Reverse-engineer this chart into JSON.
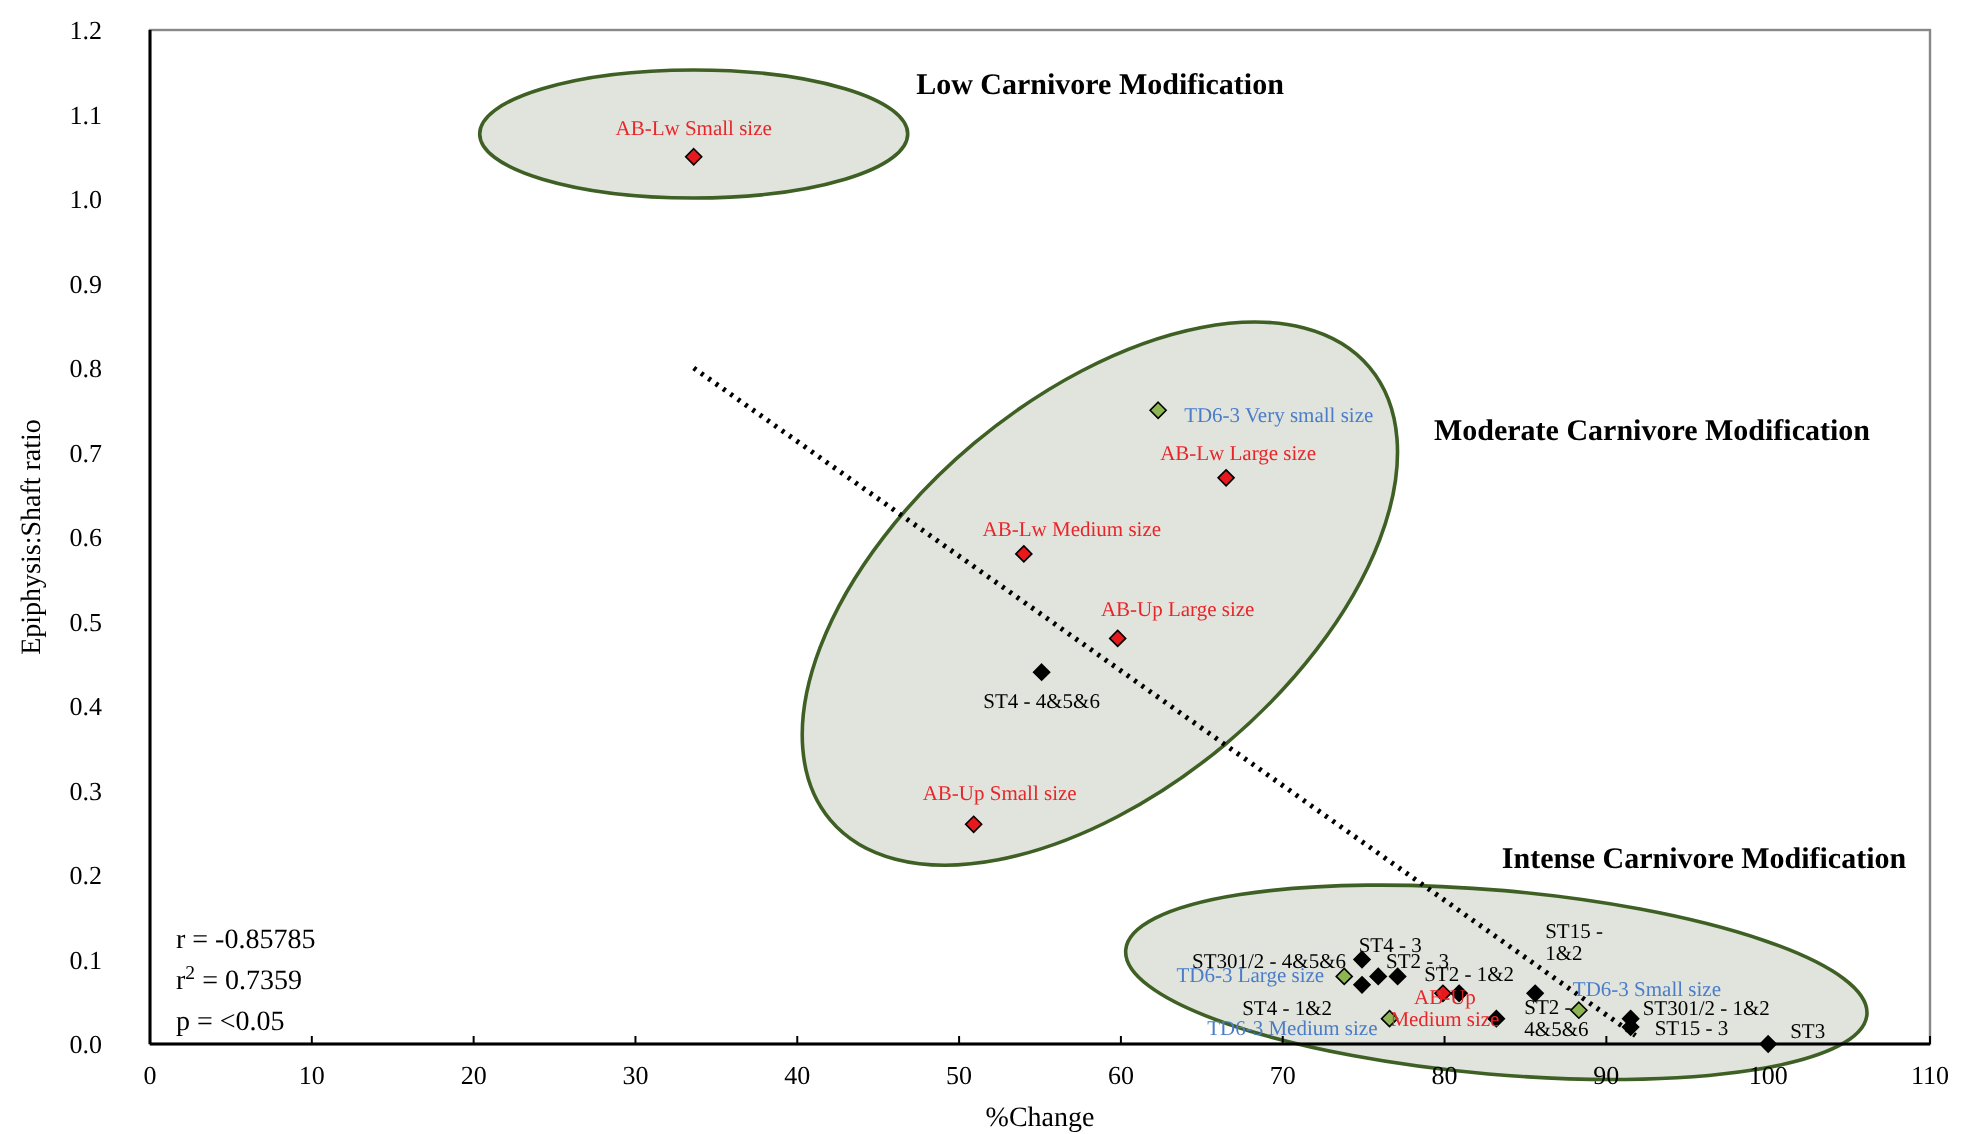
{
  "chart_data": {
    "type": "scatter",
    "xlabel": "%Change",
    "ylabel": "Epiphysis:Shaft ratio",
    "xlim": [
      0,
      110
    ],
    "xticks": [
      0,
      10,
      20,
      30,
      40,
      50,
      60,
      70,
      80,
      90,
      100,
      110
    ],
    "ylim": [
      0,
      1.2
    ],
    "yticks": [
      {
        "value": 0,
        "label": "0.0"
      },
      {
        "value": 0.1,
        "label": "0.1"
      },
      {
        "value": 0.2,
        "label": "0.2"
      },
      {
        "value": 0.3,
        "label": "0.3"
      },
      {
        "value": 0.4,
        "label": "0.4"
      },
      {
        "value": 0.5,
        "label": "0.5"
      },
      {
        "value": 0.6,
        "label": "0.6"
      },
      {
        "value": 0.7,
        "label": "0.7"
      },
      {
        "value": 0.8,
        "label": "0.8"
      },
      {
        "value": 0.9,
        "label": "0.9"
      },
      {
        "value": 1,
        "label": "1.0"
      },
      {
        "value": 1.1,
        "label": "1.1"
      },
      {
        "value": 1.2,
        "label": "1.2"
      }
    ],
    "grid": false,
    "marker": "diamond",
    "series": [
      {
        "color": "#000000",
        "x": [
          55.1,
          74.9,
          75.9,
          77.1,
          74.9,
          80.9,
          83.2,
          85.6,
          91.5,
          91.5,
          100
        ],
        "values": [
          0.44,
          0.1,
          0.08,
          0.08,
          0.07,
          0.06,
          0.03,
          0.06,
          0.03,
          0.02,
          0
        ]
      },
      {
        "color": "#e8191c",
        "x": [
          33.6,
          66.5,
          54.0,
          59.8,
          50.9,
          79.9
        ],
        "values": [
          1.05,
          0.67,
          0.58,
          0.48,
          0.26,
          0.06
        ]
      },
      {
        "color": "#8db552",
        "x": [
          62.3,
          73.8,
          76.6,
          88.3
        ],
        "values": [
          0.75,
          0.08,
          0.03,
          0.04
        ]
      },
      {
        "type": "line",
        "color": "#000000",
        "line_style": "dotted",
        "marker": "none",
        "x": [
          33.6,
          91.8
        ],
        "values": [
          0.8,
          0.01
        ]
      }
    ],
    "annotations": [
      "r = -0.85785",
      "r$^{2}$ = 0.7359",
      "p = <0.05",
      "Low Carnivore Modification",
      "Moderate Carnivore Modification",
      "Intense Carnivore Modification",
      {
        "text": "ST4 - 4&5&6",
        "x": 55.1,
        "y": 0.44
      },
      {
        "text": "ST301/2 - 4&5&6",
        "x": 74.9,
        "y": 0.1
      },
      {
        "text": "ST4 - 3",
        "x": 75.9,
        "y": 0.08
      },
      {
        "text": "ST2 - 3",
        "x": 77.1,
        "y": 0.08
      },
      {
        "text": "ST4 - 1&2",
        "x": 74.9,
        "y": 0.07
      },
      {
        "text": "ST2 - 1&2",
        "x": 80.9,
        "y": 0.06
      },
      {
        "text": "ST2 -\n4&5&6",
        "x": 83.2,
        "y": 0.03
      },
      {
        "text": "ST15 -\n1&2",
        "x": 85.6,
        "y": 0.06
      },
      {
        "text": "ST301/2 - 1&2",
        "x": 91.5,
        "y": 0.03
      },
      {
        "text": "ST15 - 3",
        "x": 91.5,
        "y": 0.02
      },
      {
        "text": "ST3",
        "x": 100,
        "y": 0
      },
      {
        "text": "AB-Lw Small size",
        "x": 33.6,
        "y": 1.05
      },
      {
        "text": "AB-Lw  Large size",
        "x": 66.5,
        "y": 0.67
      },
      {
        "text": "AB-Lw Medium size",
        "x": 54.0,
        "y": 0.58
      },
      {
        "text": "AB-Up Large size",
        "x": 59.8,
        "y": 0.48
      },
      {
        "text": "AB-Up Small size",
        "x": 50.9,
        "y": 0.26
      },
      {
        "text": "AB-Up\nMedium size",
        "x": 79.9,
        "y": 0.06
      },
      {
        "text": "TD6-3 Very small size",
        "x": 62.3,
        "y": 0.75
      },
      {
        "text": "TD6-3 Large size",
        "x": 73.8,
        "y": 0.08
      },
      {
        "text": "TD6-3 Medium size",
        "x": 76.6,
        "y": 0.03
      },
      {
        "text": "TD6-3 Small size",
        "x": 88.3,
        "y": 0.04
      }
    ]
  }
}
